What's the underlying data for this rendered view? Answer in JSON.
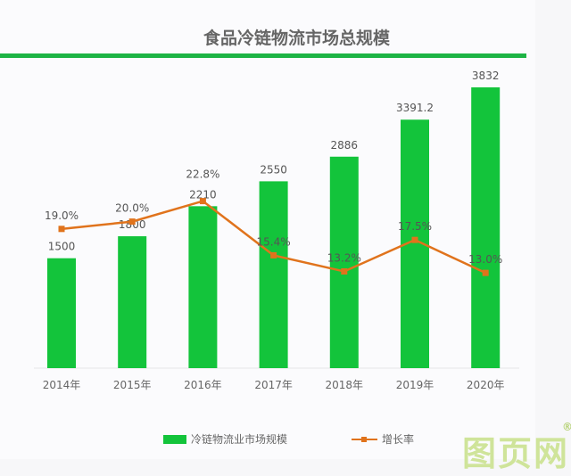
{
  "chart_data": {
    "type": "bar+line",
    "title": "食品冷链物流市场总规模",
    "categories": [
      "2014年",
      "2015年",
      "2016年",
      "2017年",
      "2018年",
      "2019年",
      "2020年"
    ],
    "series": [
      {
        "name": "冷链物流业市场规模",
        "type": "bar",
        "color": "#13c43b",
        "values": [
          1500,
          1800,
          2210,
          2550,
          2886,
          3391.2,
          3832
        ],
        "labels": [
          "1500",
          "1800",
          "2210",
          "2550",
          "2886",
          "3391.2",
          "3832"
        ]
      },
      {
        "name": "增长率",
        "type": "line",
        "color": "#e0731c",
        "values": [
          19.0,
          20.0,
          22.8,
          15.4,
          13.2,
          17.5,
          13.0
        ],
        "labels": [
          "19.0%",
          "20.0%",
          "22.8%",
          "15.4%",
          "13.2%",
          "17.5%",
          "13.0%"
        ]
      }
    ],
    "ylim": [
      0,
      5000
    ],
    "y2lim": [
      0,
      50
    ],
    "grid": false,
    "legend": "bottom"
  },
  "watermark": {
    "text": "图页网",
    "mark": "®"
  }
}
